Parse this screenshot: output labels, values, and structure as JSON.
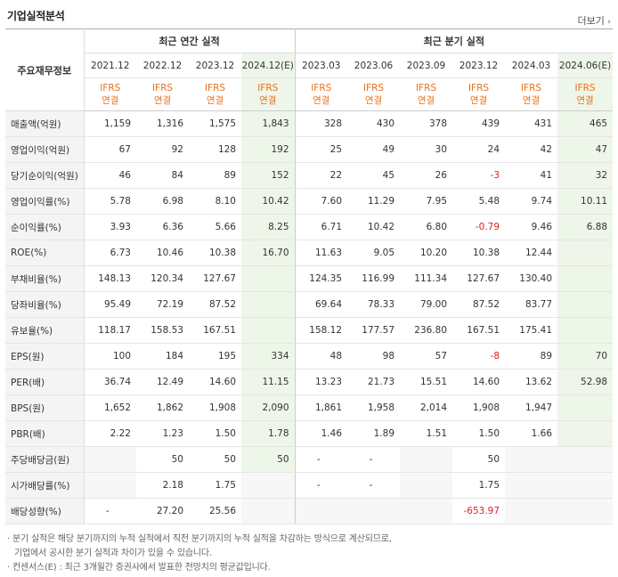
{
  "header": {
    "title": "기업실적분석",
    "more": "더보기",
    "more_icon": "chevron-right-icon"
  },
  "table": {
    "label_head": "주요재무정보",
    "group_annual": "최근 연간 실적",
    "group_quarter": "최근 분기 실적",
    "years": [
      "2021.12",
      "2022.12",
      "2023.12",
      "2024.12(E)",
      "2023.03",
      "2023.06",
      "2023.09",
      "2023.12",
      "2024.03",
      "2024.06(E)"
    ],
    "ifrs": [
      "IFRS",
      "IFRS",
      "IFRS",
      "IFRS",
      "IFRS",
      "IFRS",
      "IFRS",
      "IFRS",
      "IFRS",
      "IFRS"
    ],
    "ifrs_sub": [
      "연결",
      "연결",
      "연결",
      "연결",
      "연결",
      "연결",
      "연결",
      "연결",
      "연결",
      "연결"
    ],
    "rows": [
      {
        "label": "매출액(억원)",
        "cells": [
          "1,159",
          "1,316",
          "1,575",
          "1,843",
          "328",
          "430",
          "378",
          "439",
          "431",
          "465"
        ]
      },
      {
        "label": "영업이익(억원)",
        "cells": [
          "67",
          "92",
          "128",
          "192",
          "25",
          "49",
          "30",
          "24",
          "42",
          "47"
        ]
      },
      {
        "label": "당기순이익(억원)",
        "cells": [
          "46",
          "84",
          "89",
          "152",
          "22",
          "45",
          "26",
          "-3",
          "41",
          "32"
        ]
      },
      {
        "label": "영업이익률(%)",
        "cells": [
          "5.78",
          "6.98",
          "8.10",
          "10.42",
          "7.60",
          "11.29",
          "7.95",
          "5.48",
          "9.74",
          "10.11"
        ]
      },
      {
        "label": "순이익률(%)",
        "cells": [
          "3.93",
          "6.36",
          "5.66",
          "8.25",
          "6.71",
          "10.42",
          "6.80",
          "-0.79",
          "9.46",
          "6.88"
        ]
      },
      {
        "label": "ROE(%)",
        "cells": [
          "6.73",
          "10.46",
          "10.38",
          "16.70",
          "11.63",
          "9.05",
          "10.20",
          "10.38",
          "12.44",
          ""
        ]
      },
      {
        "label": "부채비율(%)",
        "cells": [
          "148.13",
          "120.34",
          "127.67",
          "",
          "124.35",
          "116.99",
          "111.34",
          "127.67",
          "130.40",
          ""
        ]
      },
      {
        "label": "당좌비율(%)",
        "cells": [
          "95.49",
          "72.19",
          "87.52",
          "",
          "69.64",
          "78.33",
          "79.00",
          "87.52",
          "83.77",
          ""
        ]
      },
      {
        "label": "유보율(%)",
        "cells": [
          "118.17",
          "158.53",
          "167.51",
          "",
          "158.12",
          "177.57",
          "236.80",
          "167.51",
          "175.41",
          ""
        ]
      },
      {
        "label": "EPS(원)",
        "cells": [
          "100",
          "184",
          "195",
          "334",
          "48",
          "98",
          "57",
          "-8",
          "89",
          "70"
        ]
      },
      {
        "label": "PER(배)",
        "cells": [
          "36.74",
          "12.49",
          "14.60",
          "11.15",
          "13.23",
          "21.73",
          "15.51",
          "14.60",
          "13.62",
          "52.98"
        ]
      },
      {
        "label": "BPS(원)",
        "cells": [
          "1,652",
          "1,862",
          "1,908",
          "2,090",
          "1,861",
          "1,958",
          "2,014",
          "1,908",
          "1,947",
          ""
        ]
      },
      {
        "label": "PBR(배)",
        "cells": [
          "2.22",
          "1.23",
          "1.50",
          "1.78",
          "1.46",
          "1.89",
          "1.51",
          "1.50",
          "1.66",
          ""
        ]
      },
      {
        "label": "주당배당금(원)",
        "cells": [
          "",
          "50",
          "50",
          "50",
          "-",
          "-",
          "",
          "50",
          "",
          ""
        ]
      },
      {
        "label": "시가배당률(%)",
        "cells": [
          "",
          "2.18",
          "1.75",
          "",
          "-",
          "-",
          "",
          "1.75",
          "",
          ""
        ]
      },
      {
        "label": "배당성향(%)",
        "cells": [
          "-",
          "27.20",
          "25.56",
          "",
          "",
          "",
          "",
          "-653.97",
          "",
          ""
        ]
      }
    ]
  },
  "notes": [
    "분기 실적은 해당 분기까지의 누적 실적에서 직전 분기까지의 누적 실적을 차감하는 방식으로 계산되므로,",
    "기업에서 공시한 분기 실적과 차이가 있을 수 있습니다.",
    "컨센서스(E) : 최근 3개월간 증권사에서 발표한 전망치의 평균값입니다."
  ],
  "colors": {
    "ifrs": "#e8711a",
    "negative": "#e02020",
    "estimate_bg": "#eef6e9"
  }
}
